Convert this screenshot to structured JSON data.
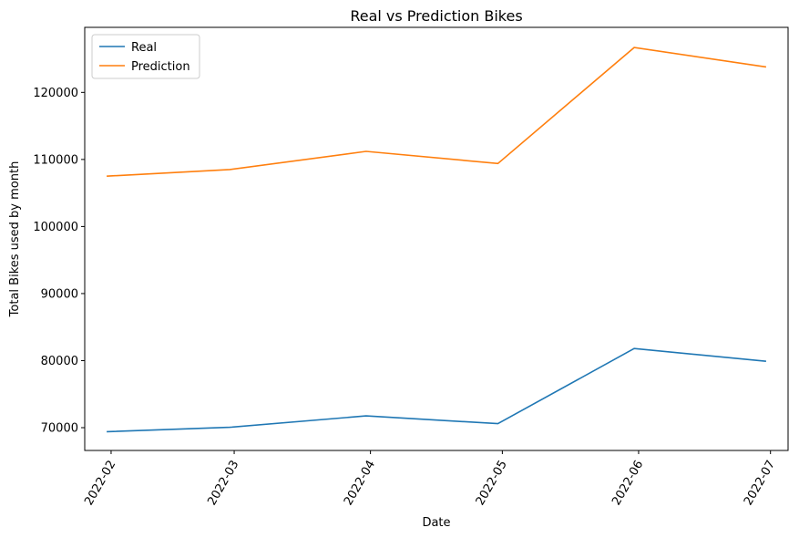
{
  "chart_data": {
    "type": "line",
    "title": "Real vs Prediction Bikes",
    "xlabel": "Date",
    "ylabel": "Total Bikes used by month",
    "x": [
      "2022-01-31",
      "2022-02-28",
      "2022-03-31",
      "2022-04-30",
      "2022-05-31",
      "2022-06-30"
    ],
    "xticks": [
      "2022-02",
      "2022-03",
      "2022-04",
      "2022-05",
      "2022-06",
      "2022-07"
    ],
    "xlim": [
      "2022-01-26",
      "2022-07-05"
    ],
    "yticks": [
      70000,
      80000,
      90000,
      100000,
      110000,
      120000
    ],
    "ylim": [
      66600,
      129700
    ],
    "legend_position": "top-left",
    "grid": false,
    "series": [
      {
        "name": "Real",
        "color": "#1f77b4",
        "values": [
          69400,
          70050,
          71750,
          70600,
          81800,
          79900
        ]
      },
      {
        "name": "Prediction",
        "color": "#ff7f0e",
        "values": [
          107500,
          108500,
          111200,
          109400,
          126700,
          123800
        ]
      }
    ]
  }
}
